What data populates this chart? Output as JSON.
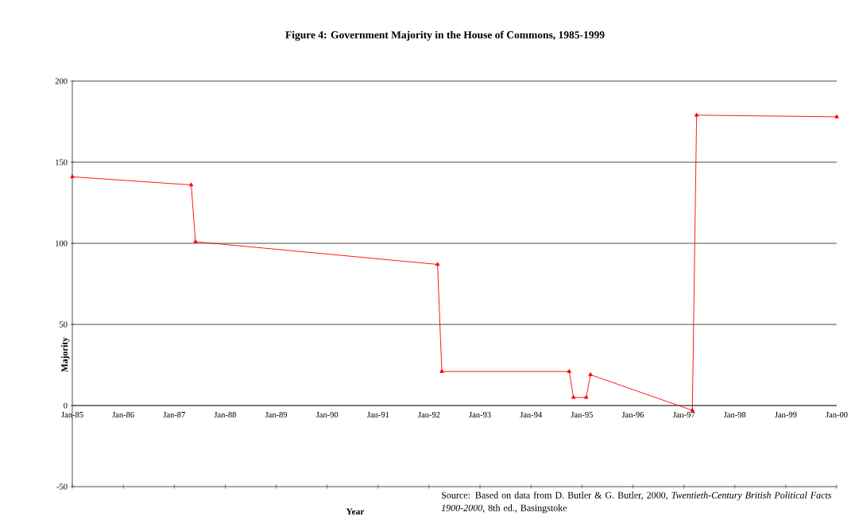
{
  "chart_data": {
    "type": "line",
    "title": "Figure 4: Government Majority in the House of Commons, 1985-1999",
    "xlabel": "Year",
    "ylabel": "Majority",
    "annotations": [
      "Source: Based on data from D. Butler & G. Butler, 2000, *Twentieth-Century British Political Facts 1900-2000*, 8th ed., Basingstoke"
    ],
    "x": [
      "1985-01",
      "1987-05",
      "1987-06",
      "1992-03",
      "1992-04",
      "1994-10",
      "1994-11",
      "1995-02",
      "1995-03",
      "1997-03",
      "1997-04",
      "2000-01"
    ],
    "series": [
      {
        "color": "#ff0000",
        "values": [
          141,
          136,
          101,
          87,
          21,
          21,
          5,
          5,
          19,
          -3,
          179,
          178
        ]
      }
    ],
    "xlim": [
      "1985-01",
      "2000-01"
    ],
    "xticks": [
      {
        "value": "1985-01",
        "label": "Jan-85"
      },
      {
        "value": "1986-01",
        "label": "Jan-86"
      },
      {
        "value": "1987-01",
        "label": "Jan-87"
      },
      {
        "value": "1988-01",
        "label": "Jan-88"
      },
      {
        "value": "1989-01",
        "label": "Jan-89"
      },
      {
        "value": "1990-01",
        "label": "Jan-90"
      },
      {
        "value": "1991-01",
        "label": "Jan-91"
      },
      {
        "value": "1992-01",
        "label": "Jan-92"
      },
      {
        "value": "1993-01",
        "label": "Jan-93"
      },
      {
        "value": "1994-01",
        "label": "Jan-94"
      },
      {
        "value": "1995-01",
        "label": "Jan-95"
      },
      {
        "value": "1996-01",
        "label": "Jan-96"
      },
      {
        "value": "1997-01",
        "label": "Jan-97"
      },
      {
        "value": "1998-01",
        "label": "Jan-98"
      },
      {
        "value": "1999-01",
        "label": "Jan-99"
      },
      {
        "value": "2000-01",
        "label": "Jan-00"
      }
    ],
    "ylim": [
      -50,
      200
    ],
    "yticks": [
      -50,
      0,
      50,
      100,
      150,
      200
    ],
    "grid": "y",
    "legend": false,
    "marker": "triangle",
    "line_style": "solid"
  }
}
